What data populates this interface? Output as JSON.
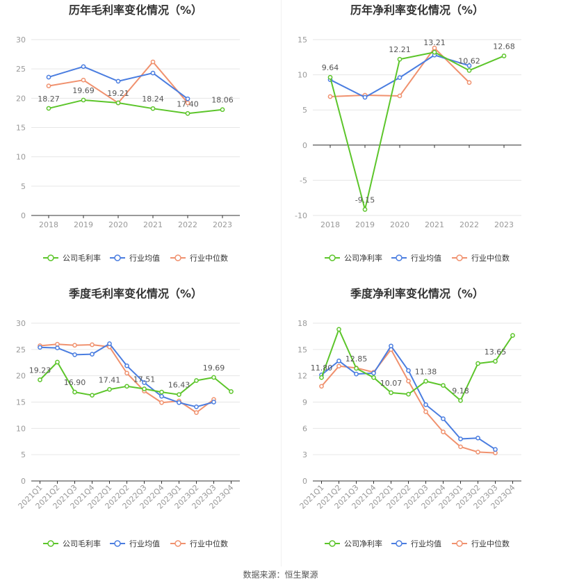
{
  "source": "数据来源：恒生聚源",
  "colors": {
    "company": "#5cc52a",
    "avg": "#4a7de0",
    "median": "#f0916e"
  },
  "chart_data": [
    {
      "type": "line",
      "title": "历年毛利率变化情况（%）",
      "categories": [
        "2018",
        "2019",
        "2020",
        "2021",
        "2022",
        "2023"
      ],
      "ylim": [
        0,
        30
      ],
      "yticks": [
        0,
        5,
        10,
        15,
        20,
        25,
        30
      ],
      "series": [
        {
          "name": "公司毛利率",
          "key": "company",
          "values": [
            18.27,
            19.69,
            19.21,
            18.24,
            17.4,
            18.06
          ]
        },
        {
          "name": "行业均值",
          "key": "avg",
          "values": [
            23.6,
            25.4,
            22.9,
            24.3,
            19.9,
            null
          ]
        },
        {
          "name": "行业中位数",
          "key": "median",
          "values": [
            22.1,
            23.1,
            19.2,
            26.2,
            19.2,
            null
          ]
        }
      ],
      "labels": [
        {
          "i": 0,
          "text": "18.27"
        },
        {
          "i": 1,
          "text": "19.69"
        },
        {
          "i": 2,
          "text": "19.21"
        },
        {
          "i": 3,
          "text": "18.24"
        },
        {
          "i": 4,
          "text": "17.40"
        },
        {
          "i": 5,
          "text": "18.06"
        }
      ]
    },
    {
      "type": "line",
      "title": "历年净利率变化情况（%）",
      "categories": [
        "2018",
        "2019",
        "2020",
        "2021",
        "2022",
        "2023"
      ],
      "ylim": [
        -10,
        15
      ],
      "yticks": [
        -10,
        -5,
        0,
        5,
        10,
        15
      ],
      "series": [
        {
          "name": "公司净利率",
          "key": "company",
          "values": [
            9.64,
            -9.15,
            12.21,
            13.21,
            10.62,
            12.68
          ]
        },
        {
          "name": "行业均值",
          "key": "avg",
          "values": [
            9.3,
            6.8,
            9.6,
            12.8,
            11.3,
            null
          ]
        },
        {
          "name": "行业中位数",
          "key": "median",
          "values": [
            6.9,
            7.1,
            7.0,
            13.8,
            8.9,
            null
          ]
        }
      ],
      "labels": [
        {
          "i": 0,
          "text": "9.64"
        },
        {
          "i": 1,
          "text": "-9.15"
        },
        {
          "i": 2,
          "text": "12.21"
        },
        {
          "i": 3,
          "text": "13.21"
        },
        {
          "i": 4,
          "text": "10.62"
        },
        {
          "i": 5,
          "text": "12.68"
        }
      ]
    },
    {
      "type": "line",
      "title": "季度毛利率变化情况（%）",
      "categories": [
        "2021Q1",
        "2021Q2",
        "2021Q3",
        "2021Q4",
        "2022Q1",
        "2022Q2",
        "2022Q3",
        "2022Q4",
        "2023Q1",
        "2023Q2",
        "2023Q3",
        "2023Q4"
      ],
      "ylim": [
        0,
        30
      ],
      "yticks": [
        0,
        5,
        10,
        15,
        20,
        25,
        30
      ],
      "rotate_ticks": true,
      "series": [
        {
          "name": "公司毛利率",
          "key": "company",
          "values": [
            19.23,
            22.6,
            16.9,
            16.3,
            17.41,
            18.0,
            17.51,
            16.9,
            16.43,
            19.1,
            19.69,
            17.0
          ]
        },
        {
          "name": "行业均值",
          "key": "avg",
          "values": [
            25.4,
            25.3,
            24.0,
            24.1,
            26.1,
            21.9,
            18.7,
            16.1,
            14.9,
            14.1,
            15.0,
            null
          ]
        },
        {
          "name": "行业中位数",
          "key": "median",
          "values": [
            25.7,
            26.0,
            25.8,
            25.9,
            25.5,
            20.5,
            17.1,
            14.9,
            15.2,
            13.0,
            15.5,
            null
          ]
        }
      ],
      "labels": [
        {
          "i": 0,
          "text": "19.23"
        },
        {
          "i": 2,
          "text": "16.90"
        },
        {
          "i": 4,
          "text": "17.41"
        },
        {
          "i": 6,
          "text": "17.51"
        },
        {
          "i": 8,
          "text": "16.43"
        },
        {
          "i": 10,
          "text": "19.69"
        }
      ]
    },
    {
      "type": "line",
      "title": "季度净利率变化情况（%）",
      "categories": [
        "2021Q1",
        "2021Q2",
        "2021Q3",
        "2021Q4",
        "2022Q1",
        "2022Q2",
        "2022Q3",
        "2022Q4",
        "2023Q1",
        "2023Q2",
        "2023Q3",
        "2023Q4"
      ],
      "ylim": [
        0,
        18
      ],
      "yticks": [
        0,
        3,
        6,
        9,
        12,
        15,
        18
      ],
      "rotate_ticks": true,
      "series": [
        {
          "name": "公司净利率",
          "key": "company",
          "values": [
            11.8,
            17.3,
            12.85,
            11.8,
            10.07,
            9.9,
            11.38,
            10.9,
            9.18,
            13.4,
            13.65,
            16.6
          ]
        },
        {
          "name": "行业均值",
          "key": "avg",
          "values": [
            12.1,
            13.7,
            12.2,
            12.3,
            15.4,
            12.6,
            8.7,
            7.1,
            4.8,
            4.9,
            3.6,
            null
          ]
        },
        {
          "name": "行业中位数",
          "key": "median",
          "values": [
            10.8,
            13.1,
            12.9,
            12.4,
            15.0,
            11.4,
            7.9,
            5.6,
            3.9,
            3.3,
            3.2,
            null
          ]
        }
      ],
      "labels": [
        {
          "i": 0,
          "text": "11.80"
        },
        {
          "i": 2,
          "text": "12.85"
        },
        {
          "i": 4,
          "text": "10.07"
        },
        {
          "i": 6,
          "text": "11.38"
        },
        {
          "i": 8,
          "text": "9.18"
        },
        {
          "i": 10,
          "text": "13.65"
        }
      ]
    }
  ]
}
